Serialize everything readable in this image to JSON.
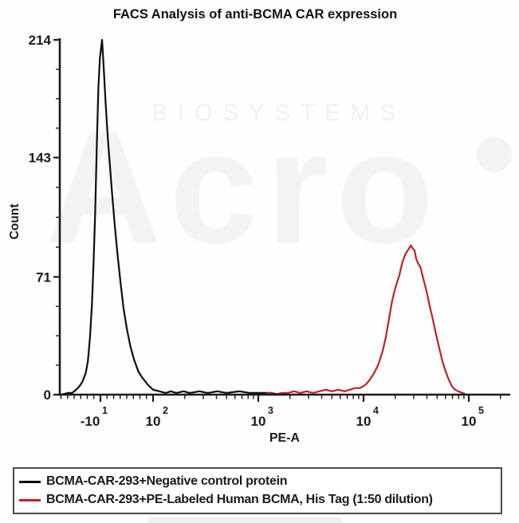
{
  "title": "FACS Analysis of anti-BCMA CAR expression",
  "watermark": {
    "brand": "Acro",
    "subbrand": "BIOSYSTEMS"
  },
  "chart_data": {
    "type": "line",
    "subtype": "flow-cytometry-histogram",
    "title": "FACS Analysis of anti-BCMA CAR expression",
    "xlabel": "PE-A",
    "ylabel": "Count",
    "x_scale": "biexponential (u = log10 decade position, 10^2..10^5 log region, linear below)",
    "ylim": [
      0,
      214
    ],
    "y_ticks": [
      0,
      71,
      143,
      214
    ],
    "x_ticks": [
      {
        "base": "-10",
        "exp": "1",
        "u": 1.5
      },
      {
        "base": "10",
        "exp": "2",
        "u": 2
      },
      {
        "base": "10",
        "exp": "3",
        "u": 3
      },
      {
        "base": "10",
        "exp": "4",
        "u": 4
      },
      {
        "base": "10",
        "exp": "5",
        "u": 5
      }
    ],
    "x_axis_range_u": [
      1.114,
      5.394
    ],
    "grid": false,
    "legend_position": "bottom-box",
    "series": [
      {
        "name": "BCMA-CAR-293+Negative control protein",
        "color": "#0d0d0d",
        "peak": {
          "u": 1.515,
          "count": 214
        },
        "points": [
          [
            1.13,
            0
          ],
          [
            1.19,
            1
          ],
          [
            1.23,
            1
          ],
          [
            1.27,
            3
          ],
          [
            1.3,
            5
          ],
          [
            1.33,
            8
          ],
          [
            1.36,
            13
          ],
          [
            1.38,
            20
          ],
          [
            1.4,
            34
          ],
          [
            1.42,
            55
          ],
          [
            1.435,
            80
          ],
          [
            1.45,
            110
          ],
          [
            1.465,
            150
          ],
          [
            1.48,
            185
          ],
          [
            1.495,
            203
          ],
          [
            1.515,
            214
          ],
          [
            1.53,
            198
          ],
          [
            1.55,
            175
          ],
          [
            1.57,
            155
          ],
          [
            1.59,
            138
          ],
          [
            1.61,
            122
          ],
          [
            1.635,
            103
          ],
          [
            1.66,
            86
          ],
          [
            1.69,
            68
          ],
          [
            1.72,
            52
          ],
          [
            1.75,
            40
          ],
          [
            1.785,
            29
          ],
          [
            1.82,
            21
          ],
          [
            1.86,
            14
          ],
          [
            1.9,
            10
          ],
          [
            1.95,
            6
          ],
          [
            2.0,
            3
          ],
          [
            2.06,
            2
          ],
          [
            2.12,
            1
          ],
          [
            2.17,
            2
          ],
          [
            2.22,
            1
          ],
          [
            2.29,
            2
          ],
          [
            2.35,
            1
          ],
          [
            2.44,
            2
          ],
          [
            2.52,
            1
          ],
          [
            2.61,
            2
          ],
          [
            2.7,
            1
          ],
          [
            2.82,
            2
          ],
          [
            2.92,
            1
          ],
          [
            3.02,
            1
          ],
          [
            3.12,
            1
          ],
          [
            3.2,
            0
          ]
        ]
      },
      {
        "name": "BCMA-CAR-293+PE-Labeled Human BCMA, His Tag (1:50 dilution)",
        "color": "#c42026",
        "peak": {
          "u": 4.45,
          "count": 90
        },
        "points": [
          [
            3.05,
            0
          ],
          [
            3.1,
            1
          ],
          [
            3.16,
            0
          ],
          [
            3.22,
            1
          ],
          [
            3.28,
            1
          ],
          [
            3.34,
            2
          ],
          [
            3.4,
            1
          ],
          [
            3.46,
            2
          ],
          [
            3.52,
            1
          ],
          [
            3.58,
            2
          ],
          [
            3.64,
            3
          ],
          [
            3.7,
            2
          ],
          [
            3.76,
            3
          ],
          [
            3.82,
            2
          ],
          [
            3.87,
            3
          ],
          [
            3.92,
            4
          ],
          [
            3.97,
            4
          ],
          [
            4.02,
            6
          ],
          [
            4.06,
            9
          ],
          [
            4.1,
            13
          ],
          [
            4.14,
            18
          ],
          [
            4.18,
            26
          ],
          [
            4.21,
            34
          ],
          [
            4.24,
            45
          ],
          [
            4.27,
            56
          ],
          [
            4.3,
            64
          ],
          [
            4.32,
            68
          ],
          [
            4.34,
            72
          ],
          [
            4.37,
            80
          ],
          [
            4.4,
            85
          ],
          [
            4.43,
            88
          ],
          [
            4.45,
            90
          ],
          [
            4.47,
            88
          ],
          [
            4.485,
            87
          ],
          [
            4.5,
            82
          ],
          [
            4.52,
            79
          ],
          [
            4.54,
            77
          ],
          [
            4.56,
            72
          ],
          [
            4.58,
            67
          ],
          [
            4.6,
            62
          ],
          [
            4.63,
            53
          ],
          [
            4.66,
            45
          ],
          [
            4.69,
            36
          ],
          [
            4.72,
            28
          ],
          [
            4.75,
            20
          ],
          [
            4.78,
            14
          ],
          [
            4.81,
            9
          ],
          [
            4.84,
            5
          ],
          [
            4.87,
            3
          ],
          [
            4.9,
            2
          ],
          [
            4.94,
            1
          ],
          [
            4.98,
            0
          ]
        ]
      }
    ]
  },
  "legend": {
    "items": [
      {
        "label": "BCMA-CAR-293+Negative control protein",
        "color": "#0d0d0d"
      },
      {
        "label": "BCMA-CAR-293+PE-Labeled Human BCMA, His Tag (1:50 dilution)",
        "color": "#c42026"
      }
    ]
  }
}
